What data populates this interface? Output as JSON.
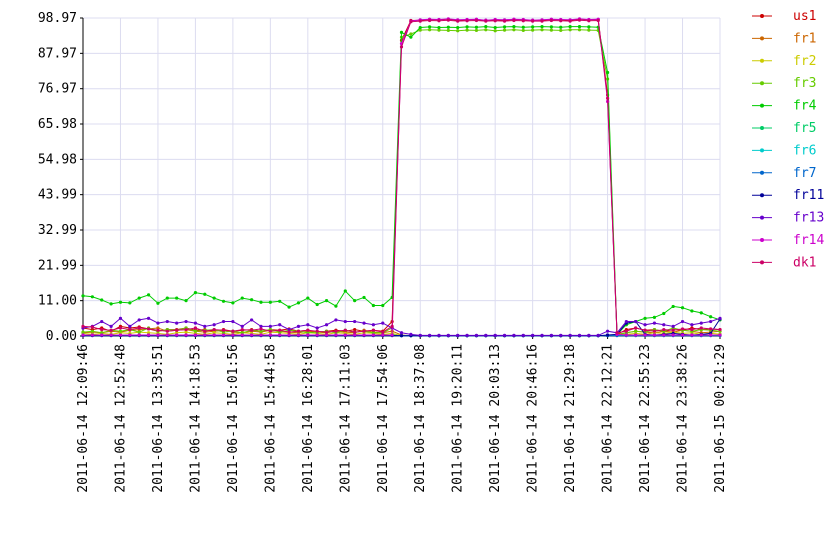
{
  "chart_data": {
    "type": "line",
    "categories": [
      "2011-06-14 12:09:46",
      null,
      null,
      null,
      "2011-06-14 12:52:48",
      null,
      null,
      null,
      "2011-06-14 13:35:51",
      null,
      null,
      null,
      "2011-06-14 14:18:53",
      null,
      null,
      null,
      "2011-06-14 15:01:56",
      null,
      null,
      null,
      "2011-06-14 15:44:58",
      null,
      null,
      null,
      "2011-06-14 16:28:01",
      null,
      null,
      null,
      "2011-06-14 17:11:03",
      null,
      null,
      null,
      "2011-06-14 17:54:06",
      null,
      null,
      null,
      "2011-06-14 18:37:08",
      null,
      null,
      null,
      "2011-06-14 19:20:11",
      null,
      null,
      null,
      "2011-06-14 20:03:13",
      null,
      null,
      null,
      "2011-06-14 20:46:16",
      null,
      null,
      null,
      "2011-06-14 21:29:18",
      null,
      null,
      null,
      "2011-06-14 22:12:21",
      null,
      null,
      null,
      "2011-06-14 22:55:23",
      null,
      null,
      null,
      "2011-06-14 23:38:26",
      null,
      null,
      null,
      "2011-06-15 00:21:29"
    ],
    "ylim": [
      0,
      98.97
    ],
    "yticks": [
      {
        "value": 0,
        "label": "0.00"
      },
      {
        "value": 11.0,
        "label": "11.00"
      },
      {
        "value": 21.99,
        "label": "21.99"
      },
      {
        "value": 32.99,
        "label": "32.99"
      },
      {
        "value": 43.99,
        "label": "43.99"
      },
      {
        "value": 54.98,
        "label": "54.98"
      },
      {
        "value": 65.98,
        "label": "65.98"
      },
      {
        "value": 76.97,
        "label": "76.97"
      },
      {
        "value": 87.97,
        "label": "87.97"
      },
      {
        "value": 98.97,
        "label": "98.97"
      }
    ],
    "grid": true,
    "legend": "right",
    "series": [
      {
        "name": "us1",
        "color": "#cc0000",
        "values": [
          2.5,
          2,
          2.5,
          1.5,
          3,
          2.5,
          2.8,
          2.2,
          1.5,
          2,
          2,
          2.5,
          1.8,
          2,
          1.5,
          2,
          1.5,
          1.8,
          2,
          1.5,
          2,
          1.8,
          2.2,
          1.5,
          1.8,
          1.2,
          1.5,
          1.8,
          1.5,
          2,
          1.5,
          1.8,
          1.5,
          4.5,
          92,
          98.2,
          98.3,
          98.5,
          98.4,
          98.6,
          98.3,
          98.4,
          98.5,
          98.2,
          98.4,
          98.3,
          98.5,
          98.4,
          98.2,
          98.3,
          98.5,
          98.4,
          98.3,
          98.6,
          98.4,
          98.5,
          75,
          0.5,
          2,
          2.5,
          1.8,
          2,
          1.5,
          2,
          1.8,
          2.5,
          2,
          2.2,
          2
        ]
      },
      {
        "name": "fr1",
        "color": "#cc6600",
        "values": [
          1,
          1.2,
          1,
          1.5,
          1.2,
          1.8,
          2,
          2.2,
          2.5,
          1.5,
          1.8,
          2,
          1.5,
          1.2,
          1.5,
          1.8,
          1.2,
          1,
          1.5,
          1.2,
          1.8,
          1.5,
          1.2,
          1,
          1.5,
          1.2,
          1,
          1.5,
          1.2,
          1,
          1.8,
          1.2,
          1,
          1.5,
          0.3,
          0.1,
          0.1,
          0.1,
          0.1,
          0.1,
          0.1,
          0.1,
          0.1,
          0.1,
          0.1,
          0.1,
          0.1,
          0.1,
          0.1,
          0.1,
          0.1,
          0.1,
          0.1,
          0.1,
          0.1,
          0.1,
          0.2,
          0.5,
          1,
          1.5,
          1.2,
          1,
          1.5,
          1.2,
          1.8,
          1.5,
          1,
          1.2,
          1.5
        ]
      },
      {
        "name": "fr2",
        "color": "#cccc00",
        "values": [
          0.8,
          0.5,
          0.8,
          0.5,
          1,
          0.8,
          1.2,
          1,
          0.8,
          0.5,
          1,
          1.2,
          0.8,
          0.5,
          1,
          0.8,
          0.5,
          1,
          0.8,
          0.5,
          1.2,
          1,
          0.8,
          0.5,
          1,
          0.8,
          0.5,
          1,
          0.8,
          0.5,
          1,
          0.8,
          0.5,
          0.8,
          0.1,
          0.1,
          0.1,
          0.1,
          0.1,
          0.1,
          0.1,
          0.1,
          0.1,
          0.1,
          0.1,
          0.1,
          0.1,
          0.1,
          0.1,
          0.1,
          0.1,
          0.1,
          0.1,
          0.1,
          0.1,
          0.1,
          0.2,
          0.3,
          0.5,
          0.8,
          0.5,
          1,
          0.8,
          1.2,
          0.8,
          1,
          0.5,
          0.8,
          0.6
        ]
      },
      {
        "name": "fr3",
        "color": "#66cc00",
        "values": [
          1.2,
          1.5,
          1,
          1.8,
          1.5,
          2,
          1.2,
          2.5,
          1.5,
          2,
          1.8,
          2.5,
          1.5,
          1.8,
          2,
          1.2,
          1.5,
          1,
          1.8,
          1.5,
          2,
          1.2,
          1.8,
          1.5,
          1,
          1.2,
          1.5,
          1,
          1.8,
          1.2,
          1.5,
          1,
          1,
          2.5,
          93,
          94,
          95.2,
          95.3,
          95.2,
          95.1,
          95,
          95.2,
          95.1,
          95.3,
          95,
          95.2,
          95.3,
          95.1,
          95.2,
          95.3,
          95.2,
          95.1,
          95.3,
          95.3,
          95.2,
          95.1,
          80,
          0.3,
          1,
          1.5,
          1.2,
          2,
          1.5,
          2.5,
          1.8,
          1.5,
          2,
          1.8,
          1.5
        ]
      },
      {
        "name": "fr4",
        "color": "#00cc00",
        "values": [
          12.5,
          12.2,
          11.2,
          10,
          10.5,
          10.3,
          11.8,
          12.8,
          10.2,
          11.8,
          11.8,
          11,
          13.5,
          13,
          11.8,
          10.8,
          10.3,
          11.8,
          11.3,
          10.5,
          10.5,
          10.8,
          9,
          10.3,
          11.8,
          9.8,
          11,
          9.3,
          14,
          11,
          12,
          9.5,
          9.5,
          12,
          94.5,
          93,
          96,
          96.2,
          96,
          96.1,
          96,
          96.2,
          96.1,
          96.3,
          96,
          96.2,
          96.3,
          96.1,
          96.2,
          96.3,
          96.2,
          96.1,
          96.3,
          96.3,
          96.2,
          96.1,
          82,
          0.5,
          3.5,
          4.5,
          5.5,
          5.8,
          7,
          9.2,
          8.8,
          7.8,
          7.2,
          6,
          5
        ]
      },
      {
        "name": "fr5",
        "color": "#00cc66",
        "values": [
          0.3,
          0.3,
          0.3,
          0.3,
          0.3,
          0.3,
          0.3,
          0.3,
          0.3,
          0.3,
          0.3,
          0.3,
          0.3,
          0.3,
          0.3,
          0.3,
          0.3,
          0.3,
          0.3,
          0.3,
          0.3,
          0.3,
          0.3,
          0.3,
          0.3,
          0.3,
          0.3,
          0.3,
          0.3,
          0.3,
          0.3,
          0.3,
          0.3,
          0.3,
          0.1,
          0.1,
          0.1,
          0.1,
          0.1,
          0.1,
          0.1,
          0.1,
          0.1,
          0.1,
          0.1,
          0.1,
          0.1,
          0.1,
          0.1,
          0.1,
          0.1,
          0.1,
          0.1,
          0.1,
          0.1,
          0.1,
          0.2,
          0.3,
          0.3,
          0.3,
          0.3,
          0.3,
          0.3,
          0.3,
          0.3,
          0.3,
          0.3,
          0.3,
          0.3
        ]
      },
      {
        "name": "fr6",
        "color": "#00cccc",
        "values": [
          0.2,
          0.2,
          0.2,
          0.2,
          0.2,
          0.2,
          0.2,
          0.2,
          0.2,
          0.2,
          0.2,
          0.2,
          0.2,
          0.2,
          0.2,
          0.2,
          0.2,
          0.2,
          0.2,
          0.2,
          0.2,
          0.2,
          0.2,
          0.2,
          0.2,
          0.2,
          0.2,
          0.2,
          0.2,
          0.2,
          0.2,
          0.2,
          0.2,
          0.2,
          0.1,
          0.1,
          0.1,
          0.1,
          0.1,
          0.1,
          0.1,
          0.1,
          0.1,
          0.1,
          0.1,
          0.1,
          0.1,
          0.1,
          0.1,
          0.1,
          0.1,
          0.1,
          0.1,
          0.1,
          0.1,
          0.1,
          0.2,
          0.2,
          0.2,
          0.2,
          0.2,
          0.2,
          0.2,
          0.2,
          0.2,
          0.2,
          0.2,
          0.2,
          0.2
        ]
      },
      {
        "name": "fr7",
        "color": "#0066cc",
        "values": [
          0.1,
          0.1,
          0.1,
          0.1,
          0.1,
          0.1,
          0.1,
          0.1,
          0.1,
          0.1,
          0.1,
          0.1,
          0.1,
          0.1,
          0.1,
          0.1,
          0.1,
          0.1,
          0.1,
          0.1,
          0.1,
          0.1,
          0.1,
          0.1,
          0.1,
          0.1,
          0.1,
          0.1,
          0.1,
          0.1,
          0.1,
          0.1,
          0.1,
          0.1,
          0.1,
          0.1,
          0.1,
          0.1,
          0.1,
          0.1,
          0.1,
          0.1,
          0.1,
          0.1,
          0.1,
          0.1,
          0.1,
          0.1,
          0.1,
          0.1,
          0.1,
          0.1,
          0.1,
          0.1,
          0.1,
          0.1,
          0.1,
          0.1,
          0.1,
          0.1,
          0.1,
          0.1,
          0.1,
          0.1,
          0.1,
          0.1,
          0.1,
          0.1,
          0.1
        ]
      },
      {
        "name": "fr11",
        "color": "#000099",
        "values": [
          0.2,
          0.2,
          0.2,
          0.2,
          0.2,
          0.2,
          0.2,
          0.2,
          0.2,
          0.2,
          0.2,
          0.2,
          0.2,
          0.2,
          0.2,
          0.2,
          0.2,
          0.2,
          0.2,
          0.2,
          0.2,
          0.2,
          0.2,
          0.2,
          0.2,
          0.2,
          0.2,
          0.2,
          0.2,
          0.2,
          0.2,
          0.2,
          0.2,
          0.2,
          0.1,
          0.1,
          0.1,
          0.1,
          0.1,
          0.1,
          0.1,
          0.1,
          0.1,
          0.1,
          0.1,
          0.1,
          0.1,
          0.1,
          0.1,
          0.1,
          0.1,
          0.1,
          0.1,
          0.1,
          0.1,
          0.1,
          0.3,
          0.5,
          4,
          4.5,
          0.5,
          0.3,
          0.5,
          0.8,
          0.5,
          0.3,
          0.5,
          0.8,
          5.3
        ]
      },
      {
        "name": "fr13",
        "color": "#6600cc",
        "values": [
          2.5,
          3,
          4.5,
          3,
          5.5,
          3,
          5,
          5.5,
          4,
          4.5,
          4,
          4.5,
          4,
          3,
          3.5,
          4.5,
          4.5,
          3,
          5,
          3,
          3,
          3.5,
          2,
          3,
          3.5,
          2.5,
          3.5,
          5,
          4.5,
          4.5,
          4,
          3.5,
          4,
          2.5,
          1,
          0.5,
          0.2,
          0.2,
          0.2,
          0.2,
          0.2,
          0.2,
          0.2,
          0.2,
          0.2,
          0.2,
          0.2,
          0.2,
          0.2,
          0.2,
          0.2,
          0.2,
          0.2,
          0.2,
          0.2,
          0.2,
          1.5,
          1,
          4.5,
          4.5,
          3.5,
          4,
          3.5,
          3,
          4.5,
          3.5,
          4,
          4.5,
          5.5
        ]
      },
      {
        "name": "fr14",
        "color": "#cc00cc",
        "values": [
          0.3,
          0.3,
          0.3,
          0.3,
          0.3,
          0.3,
          0.3,
          0.3,
          0.3,
          0.3,
          0.3,
          0.3,
          0.3,
          0.3,
          0.3,
          0.3,
          0.3,
          0.3,
          0.3,
          0.3,
          0.3,
          0.3,
          0.3,
          0.3,
          0.3,
          0.3,
          0.3,
          0.3,
          0.3,
          0.3,
          0.3,
          0.3,
          0.3,
          0.3,
          91,
          98,
          98.4,
          98.6,
          98.5,
          98.7,
          98.4,
          98.5,
          98.6,
          98.3,
          98.5,
          98.4,
          98.6,
          98.5,
          98.3,
          98.4,
          98.6,
          98.5,
          98.4,
          98.7,
          98.5,
          98.6,
          73,
          0.5,
          0.3,
          0.3,
          0.3,
          0.3,
          0.3,
          0.3,
          0.3,
          0.3,
          0.3,
          0.3,
          0.3
        ]
      },
      {
        "name": "dk1",
        "color": "#cc0066",
        "values": [
          3,
          2.8,
          2,
          1.8,
          2.5,
          2,
          2.5,
          2.2,
          1.8,
          1.5,
          1.8,
          2,
          2.5,
          1.5,
          2,
          1.8,
          1.5,
          2,
          1.8,
          2.2,
          1.5,
          1.8,
          1.2,
          1.5,
          1.8,
          1.5,
          1.2,
          1.5,
          1.8,
          1.2,
          1.5,
          1.8,
          1.2,
          3,
          90,
          97.8,
          98,
          98.2,
          98.1,
          98.3,
          98,
          98.1,
          98.2,
          98,
          98.1,
          98,
          98.2,
          98.1,
          98,
          98,
          98.2,
          98.1,
          98,
          98.3,
          98.1,
          98.2,
          74,
          1,
          1.5,
          2.5,
          1.8,
          1.5,
          2,
          1.8,
          2.2,
          2,
          2.5,
          2.2,
          2
        ]
      }
    ]
  }
}
